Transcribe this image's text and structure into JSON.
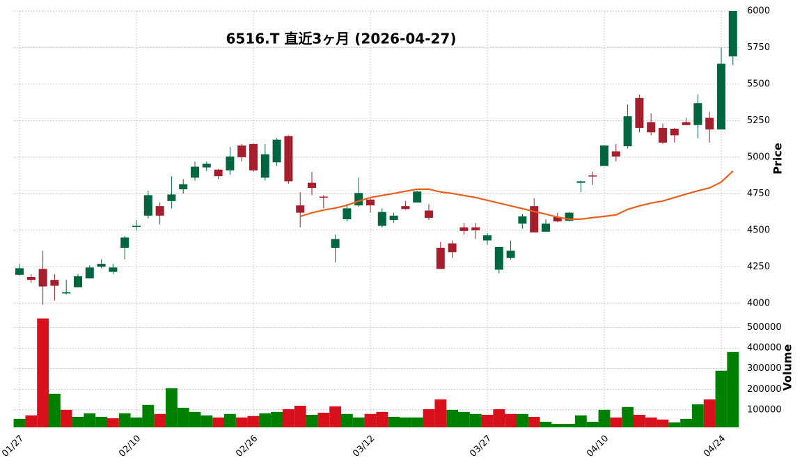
{
  "chart_data": {
    "type": "candlestick",
    "title": "6516.T  直近3ヶ月  (2026-04-27)",
    "ylabel": "Price",
    "categories": [
      "01/27",
      null,
      null,
      null,
      null,
      null,
      null,
      null,
      null,
      null,
      "02/10",
      null,
      null,
      null,
      null,
      null,
      null,
      null,
      null,
      null,
      "02/26",
      null,
      null,
      null,
      null,
      null,
      null,
      null,
      null,
      null,
      "03/12",
      null,
      null,
      null,
      null,
      null,
      null,
      null,
      null,
      null,
      "03/27",
      null,
      null,
      null,
      null,
      null,
      null,
      null,
      null,
      null,
      "04/10",
      null,
      null,
      null,
      null,
      null,
      null,
      null,
      null,
      null,
      "04/24",
      null
    ],
    "open": [
      4195,
      4180,
      4235,
      4160,
      4070,
      4110,
      4170,
      4250,
      4215,
      4380,
      4525,
      4600,
      4665,
      4700,
      4780,
      4860,
      4930,
      4915,
      4910,
      5080,
      5090,
      4860,
      4965,
      5145,
      4670,
      4825,
      4730,
      4380,
      4575,
      4670,
      4710,
      4530,
      4570,
      4665,
      4690,
      4635,
      4380,
      4410,
      4520,
      4520,
      4430,
      4230,
      4310,
      4545,
      4665,
      4490,
      4590,
      4565,
      4825,
      4875,
      4940,
      5040,
      5075,
      5405,
      5240,
      5200,
      5195,
      5240,
      5220,
      5270,
      5190,
      5690
    ],
    "high": [
      4270,
      4200,
      4360,
      4200,
      4160,
      4200,
      4260,
      4300,
      4270,
      4460,
      4570,
      4770,
      4690,
      4870,
      4850,
      4970,
      4970,
      4920,
      5070,
      5090,
      5095,
      5090,
      5130,
      5150,
      4760,
      4900,
      4740,
      4470,
      4680,
      4860,
      4720,
      4650,
      4620,
      4700,
      4770,
      4680,
      4420,
      4430,
      4550,
      4550,
      4480,
      4385,
      4430,
      4610,
      4720,
      4575,
      4620,
      4625,
      4840,
      4900,
      5080,
      5090,
      5360,
      5430,
      5300,
      5230,
      5200,
      5270,
      5430,
      5310,
      5750,
      6000
    ],
    "low": [
      4190,
      4140,
      3990,
      4020,
      4060,
      4110,
      4170,
      4240,
      4200,
      4300,
      4500,
      4580,
      4540,
      4650,
      4750,
      4840,
      4905,
      4850,
      4880,
      4970,
      4900,
      4840,
      4940,
      4820,
      4520,
      4740,
      4650,
      4280,
      4560,
      4660,
      4620,
      4520,
      4550,
      4640,
      4690,
      4570,
      4235,
      4310,
      4470,
      4440,
      4400,
      4205,
      4300,
      4510,
      4485,
      4490,
      4555,
      4560,
      4760,
      4810,
      4940,
      4970,
      5060,
      5170,
      5150,
      5090,
      5100,
      5220,
      5130,
      5100,
      5190,
      5630
    ],
    "close": [
      4240,
      4160,
      4115,
      4120,
      4075,
      4185,
      4245,
      4270,
      4245,
      4450,
      4530,
      4740,
      4600,
      4745,
      4815,
      4935,
      4955,
      4870,
      5005,
      5000,
      4910,
      5020,
      5120,
      4835,
      4620,
      4790,
      4725,
      4440,
      4650,
      4755,
      4670,
      4625,
      4600,
      4645,
      4765,
      4585,
      4235,
      4350,
      4495,
      4500,
      4465,
      4385,
      4360,
      4595,
      4485,
      4545,
      4560,
      4620,
      4835,
      4870,
      5080,
      5005,
      5280,
      5200,
      5170,
      5100,
      5150,
      5220,
      5370,
      5190,
      5640,
      6000
    ],
    "up_color": "#00663f",
    "down_color": "#a61e2b",
    "ma": {
      "color": "#e8601c",
      "values": [
        null,
        null,
        null,
        null,
        null,
        null,
        null,
        null,
        null,
        null,
        null,
        null,
        null,
        null,
        null,
        null,
        null,
        null,
        null,
        null,
        null,
        null,
        null,
        null,
        4595,
        4619,
        4638,
        4652,
        4671,
        4700,
        4724,
        4738,
        4752,
        4767,
        4781,
        4781,
        4762,
        4752,
        4738,
        4724,
        4705,
        4686,
        4667,
        4648,
        4628,
        4610,
        4590,
        4576,
        4576,
        4586,
        4595,
        4605,
        4643,
        4667,
        4686,
        4700,
        4724,
        4748,
        4770,
        4790,
        4830,
        4905
      ]
    },
    "ylim": [
      3975,
      6000
    ],
    "yticks": [
      4000,
      4250,
      4500,
      4750,
      5000,
      5250,
      5500,
      5750,
      6000
    ],
    "grid": true,
    "volume": {
      "ylabel": "Volume",
      "values": [
        56000,
        73000,
        544000,
        178000,
        100000,
        66000,
        83000,
        66000,
        59000,
        83000,
        63000,
        124000,
        80000,
        205000,
        110000,
        90000,
        73000,
        63000,
        80000,
        63000,
        70000,
        83000,
        90000,
        103000,
        120000,
        76000,
        86000,
        117000,
        80000,
        63000,
        80000,
        90000,
        66000,
        63000,
        63000,
        103000,
        151000,
        100000,
        90000,
        80000,
        76000,
        103000,
        80000,
        80000,
        66000,
        42000,
        32000,
        32000,
        73000,
        42000,
        100000,
        63000,
        114000,
        76000,
        63000,
        53000,
        39000,
        56000,
        127000,
        151000,
        290000,
        381000
      ],
      "colors": [
        "#008000",
        "#d7101b",
        "#d7101b",
        "#008000",
        "#d7101b",
        "#008000",
        "#008000",
        "#008000",
        "#d7101b",
        "#008000",
        "#008000",
        "#008000",
        "#d7101b",
        "#008000",
        "#008000",
        "#008000",
        "#008000",
        "#d7101b",
        "#008000",
        "#d7101b",
        "#d7101b",
        "#008000",
        "#008000",
        "#d7101b",
        "#d7101b",
        "#008000",
        "#d7101b",
        "#d7101b",
        "#008000",
        "#008000",
        "#d7101b",
        "#d7101b",
        "#008000",
        "#008000",
        "#008000",
        "#d7101b",
        "#d7101b",
        "#008000",
        "#008000",
        "#008000",
        "#d7101b",
        "#d7101b",
        "#d7101b",
        "#008000",
        "#d7101b",
        "#008000",
        "#008000",
        "#008000",
        "#008000",
        "#008000",
        "#008000",
        "#d7101b",
        "#008000",
        "#d7101b",
        "#d7101b",
        "#d7101b",
        "#008000",
        "#008000",
        "#008000",
        "#d7101b",
        "#008000",
        "#008000"
      ],
      "ylim": [
        15000,
        590000
      ],
      "yticks": [
        100000,
        200000,
        300000,
        400000,
        500000
      ]
    }
  }
}
